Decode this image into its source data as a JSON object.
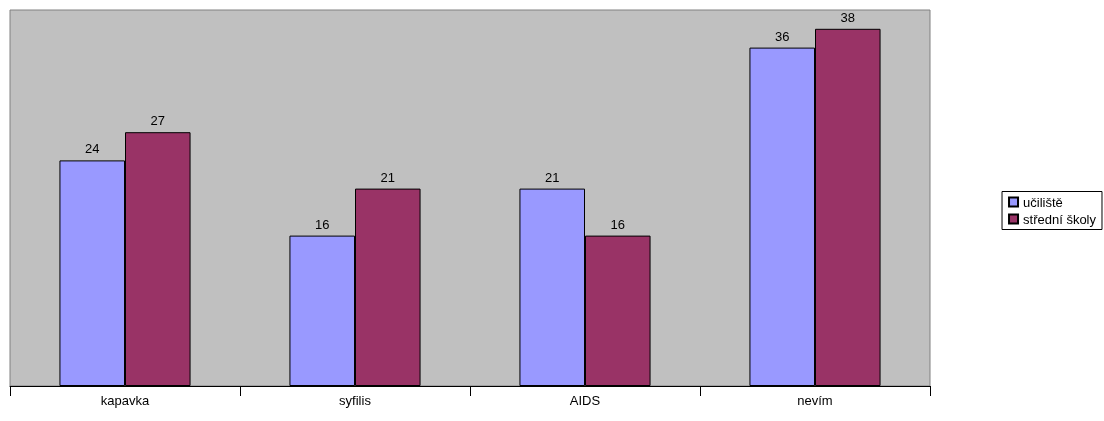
{
  "chart_data": {
    "type": "bar",
    "categories": [
      "kapavka",
      "syfilis",
      "AIDS",
      "nevím"
    ],
    "series": [
      {
        "name": "učiliště",
        "color": "#9999ff",
        "values": [
          24,
          16,
          21,
          36
        ]
      },
      {
        "name": "střední školy",
        "color": "#993366",
        "values": [
          27,
          21,
          16,
          38
        ]
      }
    ],
    "data_labels": true,
    "legend": "right",
    "grid": false
  }
}
